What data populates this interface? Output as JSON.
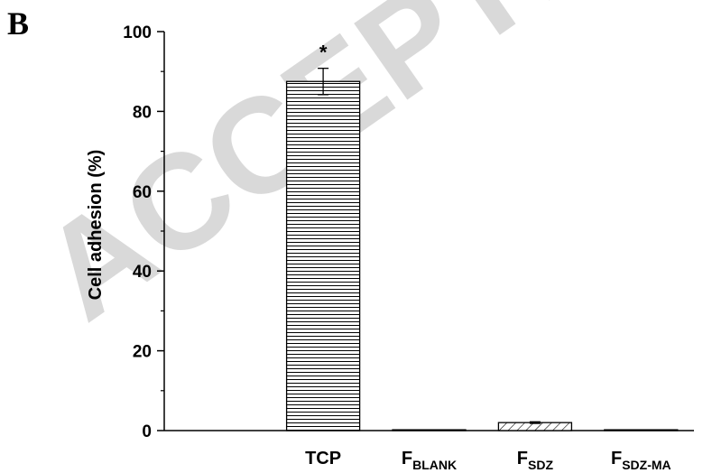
{
  "panel_label": "B",
  "watermark": "ACCEPTED",
  "chart_data": {
    "type": "bar",
    "title": "",
    "xlabel": "",
    "ylabel": "Cell adhesion (%)",
    "ylim": [
      0,
      100
    ],
    "yticks": [
      0,
      20,
      40,
      60,
      80,
      100
    ],
    "grid": false,
    "categories": [
      {
        "main": "TCP",
        "sub": ""
      },
      {
        "main": "F",
        "sub": "BLANK"
      },
      {
        "main": "F",
        "sub": "SDZ"
      },
      {
        "main": "F",
        "sub": "SDZ-MA"
      }
    ],
    "values": [
      87.5,
      0.2,
      2.0,
      0.2
    ],
    "errors": [
      3.3,
      0,
      0.2,
      0
    ],
    "patterns": [
      "horizontal-lines",
      "none",
      "diagonal-hatch",
      "none"
    ],
    "annotations": [
      {
        "category_index": 0,
        "text": "*"
      }
    ],
    "colors": {
      "axis": "#000000",
      "bar_outline": "#000000",
      "fill": "#ffffff"
    }
  }
}
